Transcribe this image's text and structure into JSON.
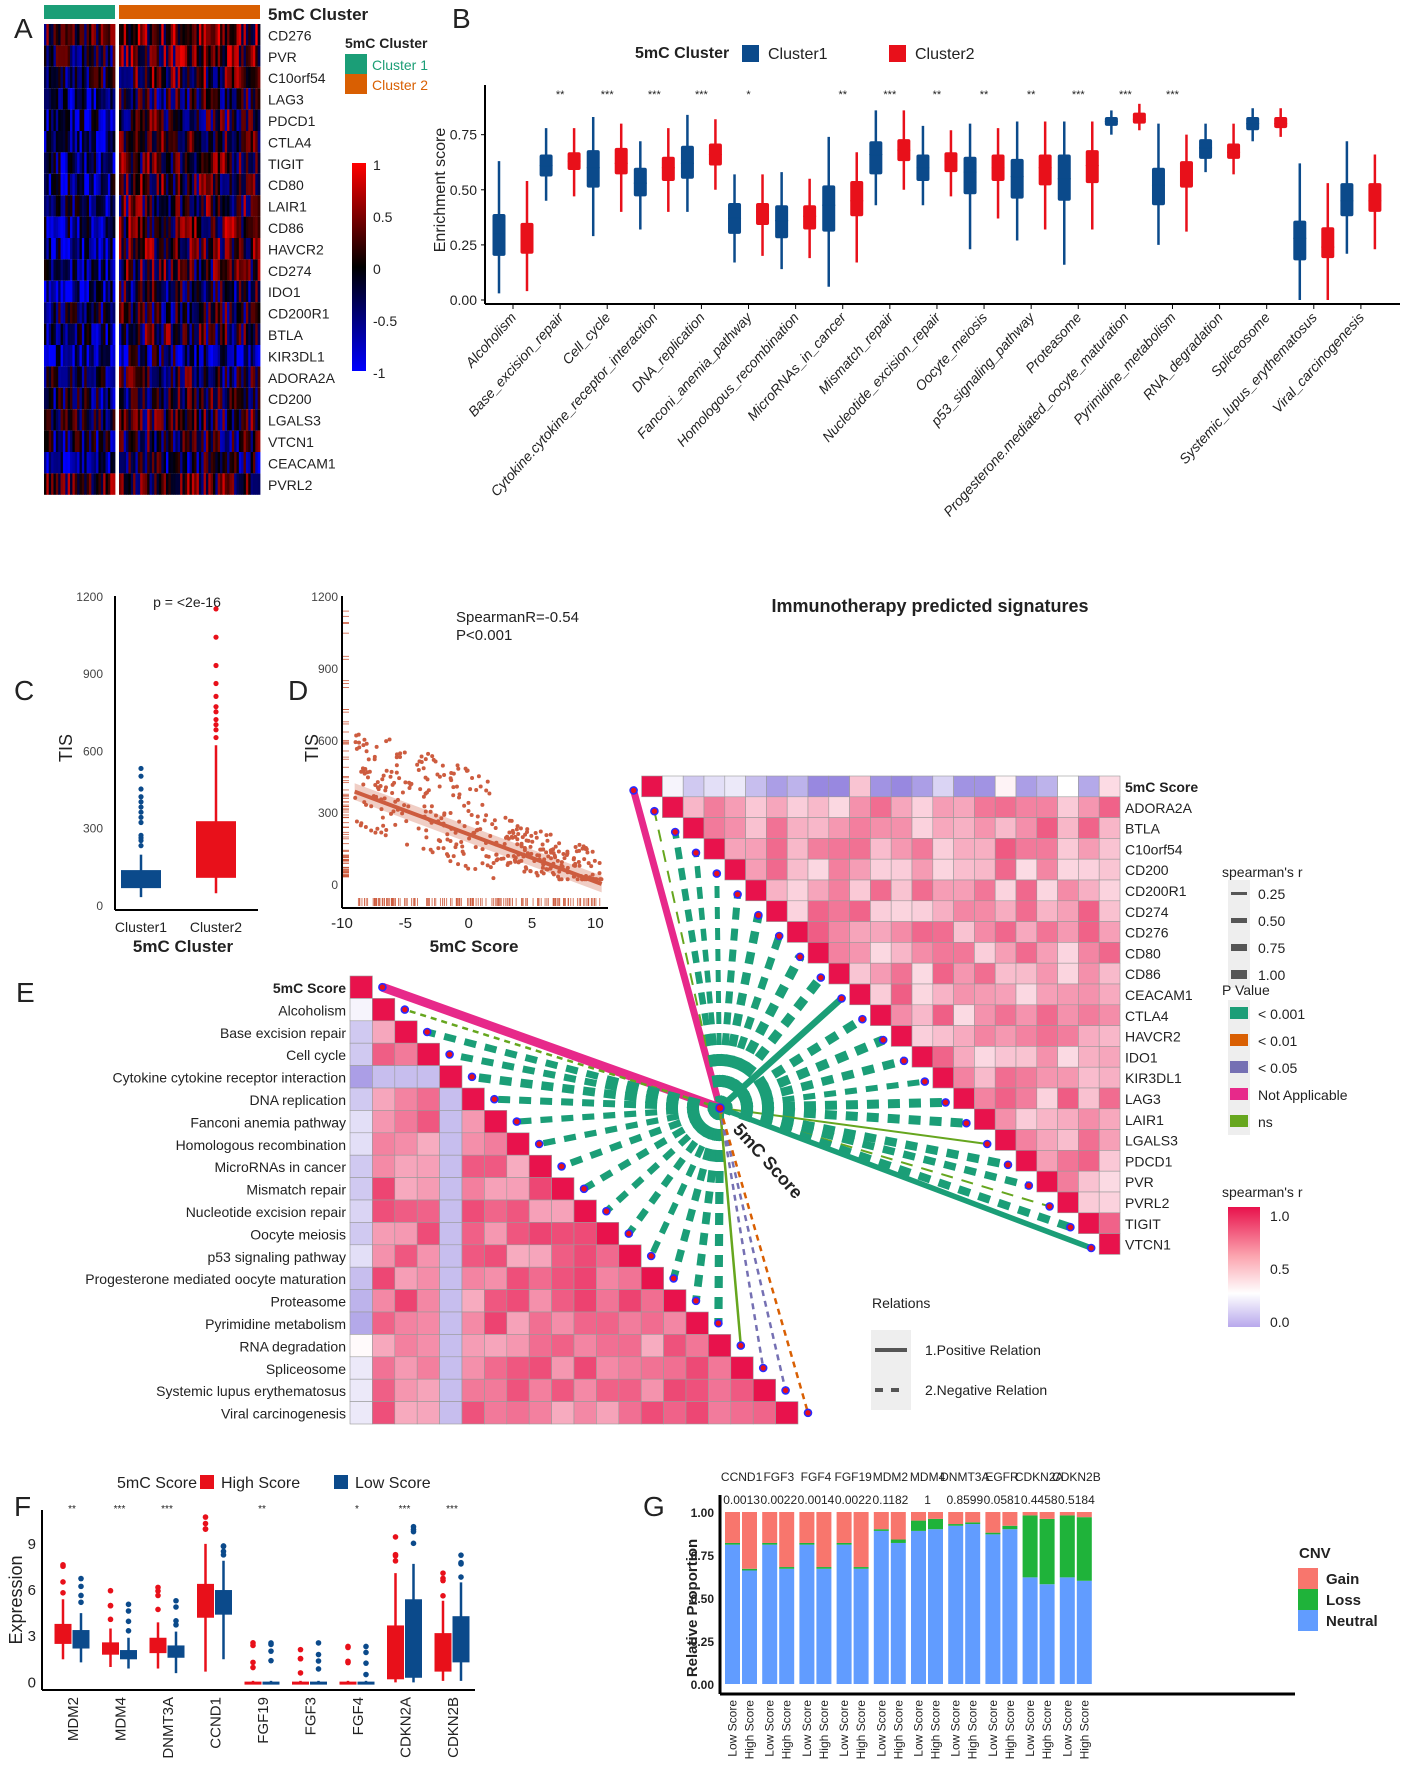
{
  "panel_labels": [
    "A",
    "B",
    "C",
    "D",
    "E",
    "F",
    "G"
  ],
  "chart_data": [
    {
      "panel": "A",
      "type": "heatmap",
      "title": "5mC Cluster",
      "annotation_title": "5mC Cluster",
      "annotation_legend": [
        {
          "label": "Cluster 1",
          "color": "#1b9e77"
        },
        {
          "label": "Cluster 2",
          "color": "#d95f02"
        }
      ],
      "rows": [
        "CD276",
        "PVR",
        "C10orf54",
        "LAG3",
        "PDCD1",
        "CTLA4",
        "TIGIT",
        "CD80",
        "LAIR1",
        "CD86",
        "HAVCR2",
        "CD274",
        "IDO1",
        "CD200R1",
        "BTLA",
        "KIR3DL1",
        "ADORA2A",
        "CD200",
        "LGALS3",
        "VTCN1",
        "CEACAM1",
        "PVRL2"
      ],
      "groups": [
        {
          "name": "Cluster 1",
          "fraction": 0.33
        },
        {
          "name": "Cluster 2",
          "fraction": 0.67
        }
      ],
      "row_mean_cluster1": [
        0.1,
        -0.1,
        -0.2,
        -0.6,
        -0.5,
        -0.55,
        -0.5,
        -0.5,
        -0.45,
        -0.5,
        -0.5,
        -0.45,
        -0.6,
        -0.3,
        -0.45,
        -0.7,
        -0.2,
        -0.3,
        -0.1,
        -0.3,
        -0.5,
        0.2
      ],
      "row_mean_cluster2": [
        0.3,
        0.2,
        0.1,
        -0.1,
        0.0,
        0.1,
        0.1,
        0.1,
        0.1,
        0.2,
        0.15,
        0.05,
        -0.15,
        -0.1,
        0.0,
        -0.4,
        -0.1,
        -0.1,
        0.0,
        -0.1,
        -0.25,
        0.1
      ],
      "colorbar": {
        "ticks": [
          "1",
          "0.5",
          "0",
          "-0.5",
          "-1"
        ],
        "min": -1,
        "max": 1,
        "colors": [
          "#0000ff",
          "#000000",
          "#ff0000"
        ]
      }
    },
    {
      "panel": "B",
      "type": "box",
      "legend_title": "5mC Cluster",
      "series": [
        {
          "name": "Cluster1",
          "color": "#0b4a8b"
        },
        {
          "name": "Cluster2",
          "color": "#e8101a"
        }
      ],
      "ylabel": "Enrichment score",
      "yticks": [
        "0.00",
        "0.25",
        "0.50",
        "0.75"
      ],
      "ylim": [
        0,
        0.93
      ],
      "categories": [
        "Alcoholism",
        "Base_excision_repair",
        "Cell_cycle",
        "Cytokine.cytokine_receptor_interaction",
        "DNA_replication",
        "Fanconi_anemia_pathway",
        "Homologous_recombination",
        "MicroRNAs_in_cancer",
        "Mismatch_repair",
        "Nucleotide_excision_repair",
        "Oocyte_meiosis",
        "p53_signaling_pathway",
        "Proteasome",
        "Progesterone.mediated_oocyte_maturation",
        "Pyrimidine_metabolism",
        "RNA_degradation",
        "Spliceosome",
        "Systemic_lupus_erythematosus",
        "Viral_carcinogenesis"
      ],
      "significance": [
        "",
        "**",
        "***",
        "***",
        "***",
        "*",
        "",
        "**",
        "***",
        "**",
        "**",
        "**",
        "***",
        "***",
        "***",
        "",
        "",
        "",
        ""
      ],
      "cluster1": [
        [
          0.03,
          0.2,
          0.3,
          0.39,
          0.63
        ],
        [
          0.45,
          0.56,
          0.61,
          0.66,
          0.78
        ],
        [
          0.29,
          0.51,
          0.6,
          0.68,
          0.83
        ],
        [
          0.32,
          0.47,
          0.53,
          0.6,
          0.72
        ],
        [
          0.4,
          0.55,
          0.62,
          0.7,
          0.84
        ],
        [
          0.17,
          0.3,
          0.37,
          0.44,
          0.57
        ],
        [
          0.14,
          0.28,
          0.36,
          0.43,
          0.58
        ],
        [
          0.06,
          0.31,
          0.43,
          0.52,
          0.74
        ],
        [
          0.43,
          0.57,
          0.66,
          0.72,
          0.86
        ],
        [
          0.43,
          0.54,
          0.6,
          0.66,
          0.79
        ],
        [
          0.23,
          0.48,
          0.58,
          0.65,
          0.8
        ],
        [
          0.27,
          0.46,
          0.56,
          0.64,
          0.81
        ],
        [
          0.16,
          0.45,
          0.55,
          0.66,
          0.81
        ],
        [
          0.75,
          0.79,
          0.81,
          0.83,
          0.86
        ],
        [
          0.25,
          0.43,
          0.52,
          0.6,
          0.8
        ],
        [
          0.58,
          0.64,
          0.69,
          0.73,
          0.8
        ],
        [
          0.72,
          0.77,
          0.8,
          0.83,
          0.87
        ],
        [
          0.0,
          0.18,
          0.28,
          0.36,
          0.62
        ],
        [
          0.21,
          0.38,
          0.45,
          0.53,
          0.72
        ]
      ],
      "cluster2": [
        [
          0.04,
          0.21,
          0.28,
          0.35,
          0.54
        ],
        [
          0.47,
          0.59,
          0.63,
          0.67,
          0.78
        ],
        [
          0.4,
          0.57,
          0.62,
          0.69,
          0.8
        ],
        [
          0.4,
          0.54,
          0.6,
          0.65,
          0.78
        ],
        [
          0.5,
          0.61,
          0.66,
          0.71,
          0.82
        ],
        [
          0.2,
          0.34,
          0.4,
          0.44,
          0.57
        ],
        [
          0.19,
          0.32,
          0.38,
          0.43,
          0.55
        ],
        [
          0.17,
          0.38,
          0.45,
          0.54,
          0.67
        ],
        [
          0.5,
          0.63,
          0.68,
          0.73,
          0.86
        ],
        [
          0.47,
          0.58,
          0.63,
          0.67,
          0.77
        ],
        [
          0.37,
          0.54,
          0.6,
          0.66,
          0.78
        ],
        [
          0.32,
          0.52,
          0.6,
          0.66,
          0.81
        ],
        [
          0.32,
          0.53,
          0.61,
          0.68,
          0.81
        ],
        [
          0.77,
          0.8,
          0.82,
          0.85,
          0.89
        ],
        [
          0.31,
          0.51,
          0.58,
          0.63,
          0.75
        ],
        [
          0.57,
          0.64,
          0.67,
          0.71,
          0.8
        ],
        [
          0.74,
          0.78,
          0.8,
          0.83,
          0.87
        ],
        [
          0.0,
          0.19,
          0.24,
          0.33,
          0.53
        ],
        [
          0.23,
          0.4,
          0.45,
          0.53,
          0.66
        ]
      ]
    },
    {
      "panel": "C",
      "type": "box",
      "annotation": "p = <2e-16",
      "categories": [
        "Cluster1",
        "Cluster2"
      ],
      "colors": [
        "#0b4a8b",
        "#e8101a"
      ],
      "xlabel": "5mC Cluster",
      "ylabel": "TIS",
      "yticks": [
        "0",
        "300",
        "600",
        "900",
        "1200"
      ],
      "ylim": [
        -20,
        1200
      ],
      "stats": [
        [
          30,
          65,
          95,
          135,
          195
        ],
        [
          45,
          105,
          175,
          325,
          620
        ]
      ],
      "outliers": [
        [
          230,
          250,
          260,
          270,
          320,
          340,
          360,
          380,
          400,
          420,
          450,
          500,
          530
        ],
        [
          650,
          680,
          700,
          720,
          750,
          770,
          810,
          860,
          930,
          1040,
          1150
        ]
      ]
    },
    {
      "panel": "D",
      "type": "scatter",
      "annotation": [
        "SpearmanR=-0.54",
        "P<0.001"
      ],
      "xlabel": "5mC Score",
      "ylabel": "TIS",
      "xticks": [
        "-10",
        "-5",
        "0",
        "5",
        "10"
      ],
      "yticks": [
        "0",
        "300",
        "600",
        "900",
        "1200"
      ],
      "xlim": [
        -10,
        11
      ],
      "ylim": [
        -100,
        1200
      ],
      "trend": {
        "x": [
          -9,
          10.5
        ],
        "y": [
          385,
          0
        ]
      },
      "color": "#cd5c3f"
    },
    {
      "panel": "E",
      "type": "heatmap",
      "title": "Immunotherapy predicted signatures",
      "hub_label": "5mC Score",
      "upper_rows": [
        "5mC Score",
        "ADORA2A",
        "BTLA",
        "C10orf54",
        "CD200",
        "CD200R1",
        "CD274",
        "CD276",
        "CD80",
        "CD86",
        "CEACAM1",
        "CTLA4",
        "HAVCR2",
        "IDO1",
        "KIR3DL1",
        "LAG3",
        "LAIR1",
        "LGALS3",
        "PDCD1",
        "PVR",
        "PVRL2",
        "TIGIT",
        "VTCN1"
      ],
      "upper_score_r": [
        1,
        -0.05,
        -0.25,
        -0.15,
        -0.1,
        -0.3,
        -0.45,
        -0.35,
        -0.55,
        -0.55,
        0.25,
        -0.5,
        -0.55,
        -0.45,
        -0.2,
        -0.5,
        -0.5,
        0.05,
        -0.45,
        -0.35,
        0.0,
        -0.4,
        0.15
      ],
      "upper_link_p": [
        "Not Applicable",
        "ns",
        "< 0.001",
        "< 0.001",
        "< 0.001",
        "< 0.001",
        "< 0.001",
        "< 0.001",
        "< 0.001",
        "< 0.001",
        "< 0.001",
        "< 0.001",
        "< 0.001",
        "< 0.001",
        "< 0.001",
        "< 0.001",
        "< 0.001",
        "ns",
        "< 0.001",
        "< 0.001",
        "ns",
        "< 0.001",
        "< 0.001"
      ],
      "upper_link_relation": [
        "positive",
        "negative",
        "negative",
        "negative",
        "negative",
        "negative",
        "negative",
        "negative",
        "negative",
        "negative",
        "positive",
        "negative",
        "negative",
        "negative",
        "negative",
        "negative",
        "negative",
        "positive",
        "negative",
        "negative",
        "negative",
        "negative",
        "positive"
      ],
      "lower_rows": [
        "5mC Score",
        "Alcoholism",
        "Base excision repair",
        "Cell cycle",
        "Cytokine cytokine receptor interaction",
        "DNA replication",
        "Fanconi anemia pathway",
        "Homologous recombination",
        "MicroRNAs in cancer",
        "Mismatch repair",
        "Nucleotide excision repair",
        "Oocyte meiosis",
        "p53 signaling pathway",
        "Progesterone mediated oocyte maturation",
        "Proteasome",
        "Pyrimidine metabolism",
        "RNA degradation",
        "Spliceosome",
        "Systemic lupus erythematosus",
        "Viral carcinogenesis"
      ],
      "lower_score_r": [
        1,
        -0.05,
        -0.25,
        -0.25,
        -0.45,
        -0.25,
        -0.15,
        -0.15,
        -0.25,
        -0.25,
        -0.2,
        -0.25,
        -0.15,
        -0.3,
        -0.35,
        -0.4,
        0.02,
        -0.1,
        -0.1,
        -0.1
      ],
      "lower_link_p": [
        "Not Applicable",
        "ns",
        "< 0.001",
        "< 0.001",
        "< 0.001",
        "< 0.001",
        "< 0.001",
        "< 0.001",
        "< 0.001",
        "< 0.001",
        "< 0.001",
        "< 0.001",
        "< 0.001",
        "< 0.001",
        "< 0.001",
        "< 0.001",
        "ns",
        "< 0.05",
        "< 0.05",
        "< 0.01"
      ],
      "lower_link_relation": [
        "positive",
        "negative",
        "negative",
        "negative",
        "negative",
        "negative",
        "negative",
        "negative",
        "negative",
        "negative",
        "negative",
        "negative",
        "negative",
        "negative",
        "negative",
        "negative",
        "positive",
        "negative",
        "negative",
        "negative"
      ],
      "legend_width": {
        "title": "spearman's r",
        "items": [
          "0.25",
          "0.50",
          "0.75",
          "1.00"
        ]
      },
      "legend_p": {
        "title": "P Value",
        "items": [
          {
            "label": "< 0.001",
            "color": "#1b9e77"
          },
          {
            "label": "< 0.01",
            "color": "#d95f02"
          },
          {
            "label": "< 0.05",
            "color": "#7570b3"
          },
          {
            "label": "Not Applicable",
            "color": "#e7298a"
          },
          {
            "label": "ns",
            "color": "#66a61e"
          }
        ]
      },
      "legend_fill": {
        "title": "spearman's r",
        "ticks": [
          "1.0",
          "0.5",
          "0.0"
        ]
      },
      "legend_relations": {
        "title": "Relations",
        "items": [
          "1.Positive Relation",
          "2.Negative Relation"
        ]
      }
    },
    {
      "panel": "F",
      "type": "box",
      "legend_title": "5mC Score",
      "series": [
        {
          "name": "High Score",
          "color": "#e8101a"
        },
        {
          "name": "Low Score",
          "color": "#0b4a8b"
        }
      ],
      "ylabel": "Expression",
      "yticks": [
        "0",
        "3",
        "6",
        "9"
      ],
      "ylim": [
        -0.3,
        11.2
      ],
      "categories": [
        "MDM2",
        "MDM4",
        "DNMT3A",
        "CCND1",
        "FGF19",
        "FGF3",
        "FGF4",
        "CDKN2A",
        "CDKN2B"
      ],
      "significance": [
        "**",
        "***",
        "***",
        "",
        "**",
        "",
        "*",
        "***",
        "***"
      ],
      "high": [
        [
          1.5,
          2.5,
          3.1,
          3.8,
          5.4
        ],
        [
          1.0,
          1.8,
          2.2,
          2.6,
          3.5
        ],
        [
          0.9,
          1.9,
          2.4,
          2.9,
          3.9
        ],
        [
          0.7,
          4.2,
          5.3,
          6.4,
          9.0
        ],
        [
          0,
          0,
          0,
          0.05,
          0.1
        ],
        [
          0,
          0,
          0,
          0.05,
          0.1
        ],
        [
          0,
          0,
          0,
          0.05,
          0.1
        ],
        [
          0,
          0.2,
          1.6,
          3.7,
          7.1
        ],
        [
          0.1,
          0.7,
          2.0,
          3.2,
          5.3
        ]
      ],
      "low": [
        [
          1.3,
          2.2,
          2.9,
          3.4,
          4.5
        ],
        [
          0.9,
          1.5,
          1.8,
          2.1,
          2.9
        ],
        [
          0.6,
          1.6,
          2.0,
          2.4,
          3.3
        ],
        [
          1.5,
          4.4,
          5.3,
          6.0,
          7.9
        ],
        [
          0,
          0,
          0,
          0.05,
          0.1
        ],
        [
          0,
          0,
          0,
          0.05,
          0.1
        ],
        [
          0,
          0,
          0,
          0.05,
          0.1
        ],
        [
          0,
          0.3,
          2.8,
          5.4,
          7.7
        ],
        [
          0.1,
          1.3,
          2.8,
          4.3,
          6.5
        ]
      ]
    },
    {
      "panel": "G",
      "type": "bar",
      "stacked": true,
      "ylabel": "Relative Proportion",
      "yticks": [
        "0.00",
        "0.25",
        "0.50",
        "0.75",
        "1.00"
      ],
      "ylim": [
        0,
        1
      ],
      "genes": [
        "CCND1",
        "FGF3",
        "FGF4",
        "FGF19",
        "MDM2",
        "MDM4",
        "DNMT3A",
        "EGFR",
        "CDKN2A",
        "CDKN2B"
      ],
      "p_values": [
        "0.0013",
        "0.0022",
        "0.0014",
        "0.0022",
        "0.1182",
        "1",
        "0.8599",
        "0.0581",
        "0.4458",
        "0.5184"
      ],
      "groups": [
        "Low Score",
        "High Score"
      ],
      "legend_title": "CNV",
      "legend": [
        {
          "name": "Gain",
          "color": "#f8766d"
        },
        {
          "name": "Loss",
          "color": "#1fb33a"
        },
        {
          "name": "Neutral",
          "color": "#619cff"
        }
      ],
      "neutral": [
        [
          0.81,
          0.66
        ],
        [
          0.81,
          0.67
        ],
        [
          0.81,
          0.67
        ],
        [
          0.81,
          0.67
        ],
        [
          0.89,
          0.82
        ],
        [
          0.89,
          0.9
        ],
        [
          0.92,
          0.93
        ],
        [
          0.87,
          0.9
        ],
        [
          0.62,
          0.58
        ],
        [
          0.62,
          0.6
        ]
      ],
      "loss": [
        [
          0.01,
          0.01
        ],
        [
          0.01,
          0.01
        ],
        [
          0.01,
          0.01
        ],
        [
          0.01,
          0.01
        ],
        [
          0.01,
          0.02
        ],
        [
          0.06,
          0.06
        ],
        [
          0.01,
          0.01
        ],
        [
          0.01,
          0.02
        ],
        [
          0.36,
          0.38
        ],
        [
          0.36,
          0.37
        ]
      ],
      "gain": [
        [
          0.18,
          0.33
        ],
        [
          0.18,
          0.32
        ],
        [
          0.18,
          0.32
        ],
        [
          0.18,
          0.32
        ],
        [
          0.1,
          0.16
        ],
        [
          0.05,
          0.04
        ],
        [
          0.07,
          0.06
        ],
        [
          0.12,
          0.08
        ],
        [
          0.02,
          0.04
        ],
        [
          0.02,
          0.03
        ]
      ]
    }
  ]
}
